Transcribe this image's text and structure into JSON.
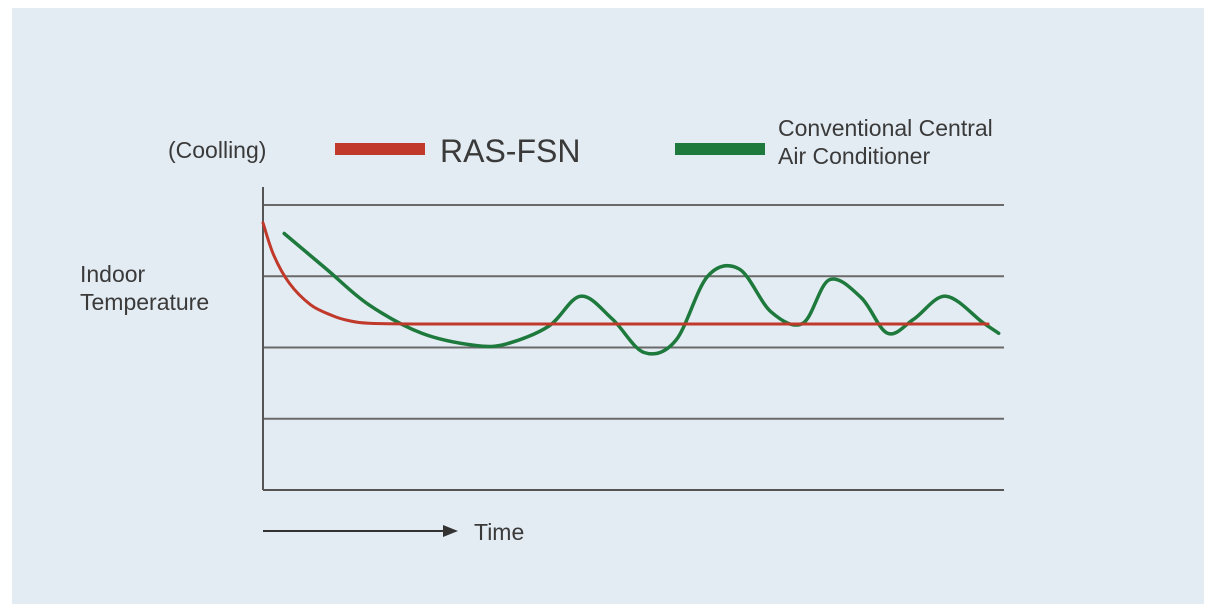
{
  "chart_data": {
    "type": "line",
    "mode_label": "(Coolling)",
    "ylabel": [
      "Indoor",
      "Temperature"
    ],
    "xlabel": "Time",
    "grid": true,
    "legend_position": "top",
    "series": [
      {
        "name": "RAS-FSN",
        "color": "#c0392b",
        "label_lines": [
          "RAS-FSN"
        ],
        "x": [
          0,
          10,
          25,
          45,
          65,
          80,
          100,
          150,
          200,
          300,
          400,
          500,
          600,
          685
        ],
        "y": [
          3.75,
          3.3,
          2.9,
          2.6,
          2.45,
          2.38,
          2.34,
          2.33,
          2.33,
          2.33,
          2.33,
          2.33,
          2.33,
          2.33
        ]
      },
      {
        "name": "Conventional Central Air Conditioner",
        "color": "#1e7a3c",
        "label_lines": [
          "Conventional Central",
          "Air Conditioner"
        ],
        "x": [
          20,
          60,
          100,
          150,
          200,
          230,
          270,
          300,
          330,
          360,
          390,
          420,
          450,
          480,
          510,
          535,
          565,
          590,
          615,
          645,
          680,
          695
        ],
        "y": [
          3.6,
          3.1,
          2.6,
          2.2,
          2.03,
          2.05,
          2.3,
          2.72,
          2.4,
          1.93,
          2.1,
          3.0,
          3.1,
          2.5,
          2.34,
          2.95,
          2.7,
          2.2,
          2.4,
          2.72,
          2.35,
          2.2
        ]
      }
    ],
    "xlim": [
      0,
      700
    ],
    "ylim": [
      0,
      4
    ],
    "y_gridlines": [
      1,
      2,
      3,
      4
    ]
  }
}
